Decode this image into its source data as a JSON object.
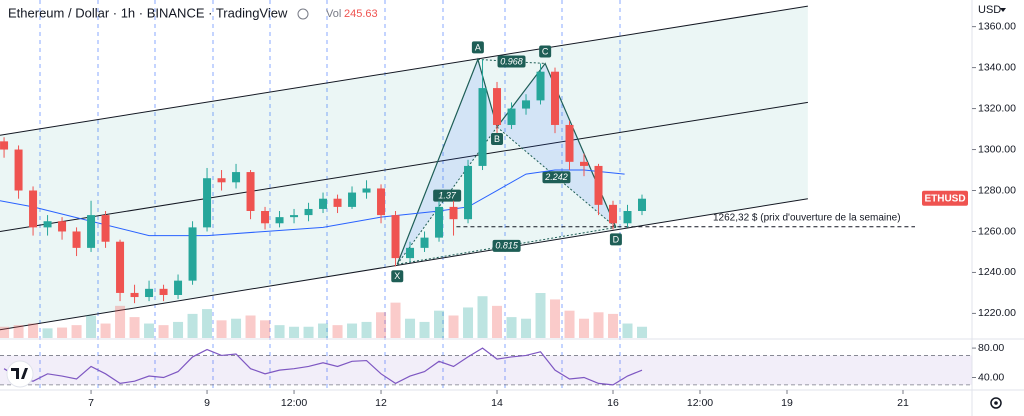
{
  "chart_data": {
    "type": "candlestick",
    "title": "Ethereum / Dollar · 1h · BINANCE · TradingView",
    "vol_label": "Vol",
    "vol_value": 245.63,
    "currency": "USD",
    "symbol_tag": "ETHUSD",
    "up_color": "#26a69a",
    "down_color": "#ef5350",
    "x": [
      5.5,
      5.75,
      6,
      6.25,
      6.5,
      6.75,
      7,
      7.25,
      7.5,
      7.75,
      8,
      8.25,
      8.5,
      8.75,
      9,
      9.25,
      9.5,
      9.75,
      10,
      10.25,
      10.5,
      10.75,
      11,
      11.25,
      11.5,
      11.75,
      12,
      12.25,
      12.5,
      12.75,
      13,
      13.25,
      13.5,
      13.75,
      14,
      14.25,
      14.5,
      14.75,
      15,
      15.25,
      15.5,
      15.75,
      16,
      16.25,
      16.5
    ],
    "open": [
      1304,
      1300,
      1280,
      1262,
      1265,
      1260,
      1252,
      1268,
      1255,
      1230,
      1228,
      1232,
      1229,
      1236,
      1262,
      1286,
      1284,
      1289,
      1270,
      1264,
      1267,
      1268,
      1271,
      1276,
      1272,
      1279,
      1281,
      1268,
      1247,
      1252,
      1257,
      1272,
      1266,
      1292,
      1330,
      1312,
      1320,
      1324,
      1338,
      1312,
      1294,
      1292,
      1273,
      1264,
      1270
    ],
    "high": [
      1306,
      1302,
      1282,
      1268,
      1267,
      1262,
      1275,
      1270,
      1256,
      1234,
      1236,
      1234,
      1239,
      1265,
      1291,
      1290,
      1293,
      1290,
      1272,
      1270,
      1271,
      1274,
      1279,
      1278,
      1282,
      1285,
      1283,
      1270,
      1255,
      1260,
      1275,
      1275,
      1295,
      1344,
      1333,
      1323,
      1327,
      1342,
      1340,
      1314,
      1298,
      1293,
      1275,
      1273,
      1278
    ],
    "low": [
      1296,
      1276,
      1258,
      1258,
      1256,
      1248,
      1250,
      1252,
      1226,
      1225,
      1226,
      1226,
      1227,
      1234,
      1260,
      1280,
      1281,
      1266,
      1261,
      1262,
      1264,
      1265,
      1269,
      1269,
      1271,
      1276,
      1264,
      1243,
      1245,
      1250,
      1255,
      1258,
      1264,
      1290,
      1308,
      1310,
      1317,
      1322,
      1308,
      1290,
      1287,
      1268,
      1261,
      1262,
      1268
    ],
    "close": [
      1300,
      1280,
      1262,
      1265,
      1260,
      1252,
      1268,
      1255,
      1230,
      1228,
      1232,
      1229,
      1236,
      1262,
      1286,
      1284,
      1289,
      1270,
      1264,
      1267,
      1268,
      1271,
      1276,
      1272,
      1279,
      1281,
      1268,
      1247,
      1252,
      1257,
      1272,
      1266,
      1292,
      1330,
      1312,
      1320,
      1324,
      1338,
      1312,
      1294,
      1292,
      1273,
      1264,
      1270,
      1276
    ],
    "volume": [
      700,
      800,
      900,
      600,
      650,
      800,
      1400,
      900,
      2000,
      1300,
      900,
      800,
      1000,
      1500,
      1800,
      1100,
      1200,
      1400,
      1100,
      800,
      700,
      700,
      900,
      800,
      900,
      1000,
      1600,
      2200,
      1200,
      1000,
      1700,
      1400,
      1900,
      2600,
      2000,
      1300,
      1200,
      2800,
      2400,
      1700,
      1200,
      1600,
      1500,
      900,
      700
    ],
    "xlim": [
      5.43,
      22.19
    ],
    "xticks": [
      7,
      9,
      {
        "value": 10.5,
        "label": "12:00"
      },
      12,
      14,
      16,
      {
        "value": 17.5,
        "label": "12:00"
      },
      19,
      21
    ],
    "ylim": [
      1208,
      1373
    ],
    "yticks": [
      {
        "value": 1220,
        "label": "1220.00"
      },
      {
        "value": 1240,
        "label": "1240.00"
      },
      {
        "value": 1260,
        "label": "1260.00"
      },
      {
        "value": 1280,
        "label": "1280.00"
      },
      {
        "value": 1300,
        "label": "1300.00"
      },
      {
        "value": 1320,
        "label": "1320.00"
      },
      {
        "value": 1340,
        "label": "1340.00"
      },
      {
        "value": 1360,
        "label": "1360.00"
      }
    ],
    "moving_average": {
      "color": "#2962ff",
      "x": [
        5.43,
        6,
        7,
        8,
        9,
        10,
        11,
        12,
        13,
        13.5,
        14,
        14.5,
        15,
        15.5,
        16.2
      ],
      "values": [
        1275,
        1272,
        1265,
        1258,
        1258,
        1260,
        1262,
        1267,
        1270,
        1272,
        1280,
        1288,
        1290,
        1290,
        1288
      ]
    },
    "channel": {
      "color": "#131722",
      "x": [
        5.43,
        19.36
      ],
      "upper": [
        1307,
        1370
      ],
      "middle": [
        1260,
        1323
      ],
      "lower": [
        1212,
        1276
      ]
    },
    "pattern": {
      "color": "#1e5e56",
      "points": [
        {
          "label": "X",
          "x": 12.28,
          "y": 1244
        },
        {
          "label": "A",
          "x": 13.67,
          "y": 1344
        },
        {
          "label": "B",
          "x": 14.0,
          "y": 1311
        },
        {
          "label": "C",
          "x": 14.83,
          "y": 1342
        },
        {
          "label": "D",
          "x": 16.05,
          "y": 1262
        }
      ],
      "ratios": [
        "0.968",
        "0.815",
        "2.242",
        "1.37"
      ]
    },
    "week_open": {
      "value": 1262.32,
      "label": "1262,32 $ (prix d'ouverture de la semaine)"
    },
    "rsi": {
      "color": "#7e57c2",
      "ylim": [
        23,
        91
      ],
      "yticks": [
        {
          "value": 80,
          "label": "80.00"
        },
        {
          "value": 40,
          "label": "40.00"
        }
      ],
      "levels": [
        70,
        30
      ],
      "values": [
        52,
        40,
        35,
        45,
        42,
        38,
        55,
        45,
        32,
        35,
        42,
        40,
        48,
        68,
        78,
        70,
        72,
        52,
        45,
        50,
        52,
        55,
        60,
        55,
        62,
        63,
        45,
        32,
        42,
        48,
        62,
        55,
        68,
        80,
        65,
        68,
        70,
        75,
        50,
        38,
        40,
        32,
        30,
        42,
        50
      ]
    }
  }
}
